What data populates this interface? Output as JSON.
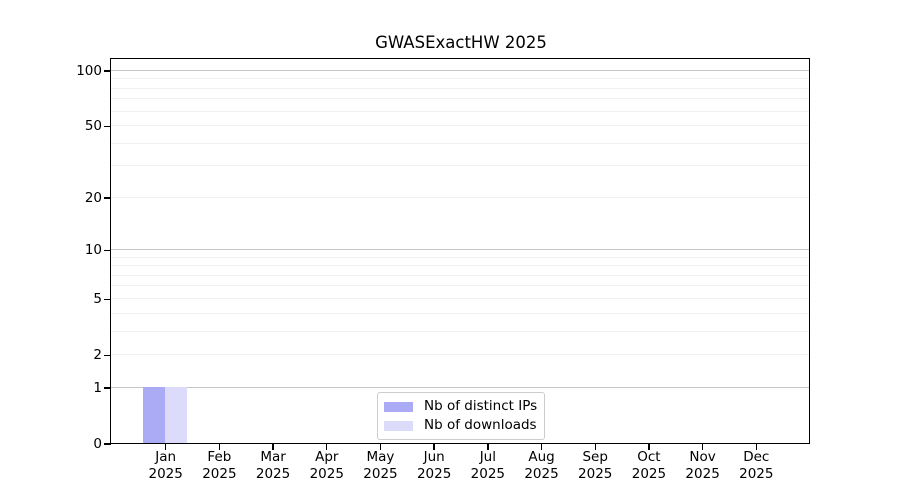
{
  "title": "GWASExactHW 2025",
  "chart_data": {
    "type": "bar",
    "title": "GWASExactHW 2025",
    "categories": [
      "Jan 2025",
      "Feb 2025",
      "Mar 2025",
      "Apr 2025",
      "May 2025",
      "Jun 2025",
      "Jul 2025",
      "Aug 2025",
      "Sep 2025",
      "Oct 2025",
      "Nov 2025",
      "Dec 2025"
    ],
    "series": [
      {
        "name": "Nb of distinct IPs",
        "color": "#aaaaf5",
        "values": [
          1,
          0,
          0,
          0,
          0,
          0,
          0,
          0,
          0,
          0,
          0,
          0
        ]
      },
      {
        "name": "Nb of downloads",
        "color": "#dcdcfa",
        "values": [
          1,
          0,
          0,
          0,
          0,
          0,
          0,
          0,
          0,
          0,
          0,
          0
        ]
      }
    ],
    "xlabel": "",
    "ylabel": "",
    "yscale": "log1p",
    "ylim": [
      0,
      115
    ],
    "yticks": [
      0,
      1,
      2,
      5,
      10,
      20,
      50,
      100
    ],
    "grid_major": [
      1,
      10,
      100
    ],
    "grid_minor": [
      2,
      3,
      4,
      5,
      6,
      7,
      8,
      9,
      20,
      30,
      40,
      50,
      60,
      70,
      80,
      90
    ],
    "grid": "horizontal-only",
    "legend_position": "lower-center-inside"
  },
  "colors": {
    "spine": "#000000",
    "grid_major": "#c6c6c6",
    "grid_minor": "#f0f0f0",
    "legend_border": "#cccccc",
    "background": "#ffffff"
  }
}
